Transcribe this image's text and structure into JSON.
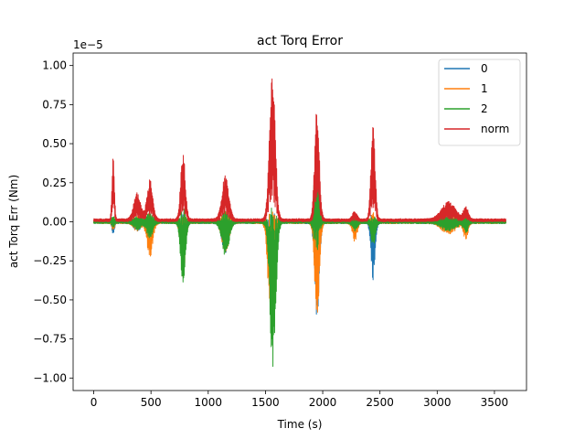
{
  "chart_data": {
    "type": "line",
    "title": "act Torq Error",
    "xlabel": "Time (s)",
    "ylabel": "act Torq Err (Nm)",
    "offset_text": "1e−5",
    "scale": 1e-05,
    "xlim": [
      -180,
      3780
    ],
    "ylim": [
      -1.08,
      1.08
    ],
    "xticks": [
      0,
      500,
      1000,
      1500,
      2000,
      2500,
      3000,
      3500
    ],
    "xtick_labels": [
      "0",
      "500",
      "1000",
      "1500",
      "2000",
      "2500",
      "3000",
      "3500"
    ],
    "yticks": [
      -1.0,
      -0.75,
      -0.5,
      -0.25,
      0.0,
      0.25,
      0.5,
      0.75,
      1.0
    ],
    "ytick_labels": [
      "−1.00",
      "−0.75",
      "−0.50",
      "−0.25",
      "0.00",
      "0.25",
      "0.50",
      "0.75",
      "1.00"
    ],
    "grid": false,
    "legend_position": "top-right",
    "x_range": [
      0,
      3600
    ],
    "series": [
      {
        "name": "0",
        "color": "#1f77b4",
        "events": [
          [
            170,
            -0.08,
            0.02,
            10
          ],
          [
            380,
            -0.05,
            0.02,
            30
          ],
          [
            490,
            -0.08,
            0.03,
            25
          ],
          [
            780,
            -0.35,
            0.05,
            20
          ],
          [
            1150,
            -0.2,
            0.05,
            30
          ],
          [
            1560,
            -0.6,
            0.06,
            25
          ],
          [
            1950,
            -0.6,
            0.06,
            20
          ],
          [
            2280,
            -0.05,
            0.02,
            20
          ],
          [
            2440,
            -0.36,
            0.05,
            18
          ],
          [
            3100,
            -0.03,
            0.02,
            60
          ],
          [
            3250,
            -0.05,
            0.02,
            20
          ]
        ]
      },
      {
        "name": "1",
        "color": "#ff7f0e",
        "events": [
          [
            170,
            -0.05,
            0.02,
            10
          ],
          [
            380,
            -0.05,
            0.03,
            30
          ],
          [
            490,
            -0.22,
            0.05,
            25
          ],
          [
            780,
            -0.35,
            0.06,
            20
          ],
          [
            1150,
            -0.2,
            0.06,
            30
          ],
          [
            1550,
            -0.72,
            0.08,
            25
          ],
          [
            1950,
            -0.67,
            0.08,
            20
          ],
          [
            2280,
            -0.12,
            0.03,
            20
          ],
          [
            2440,
            -0.12,
            0.05,
            18
          ],
          [
            3100,
            -0.07,
            0.03,
            60
          ],
          [
            3250,
            -0.1,
            0.03,
            20
          ]
        ]
      },
      {
        "name": "2",
        "color": "#2ca02c",
        "events": [
          [
            170,
            -0.03,
            0.03,
            10
          ],
          [
            380,
            -0.04,
            0.03,
            30
          ],
          [
            490,
            -0.1,
            0.05,
            25
          ],
          [
            780,
            -0.42,
            0.08,
            20
          ],
          [
            1150,
            -0.22,
            0.06,
            30
          ],
          [
            1565,
            -0.98,
            0.1,
            25
          ],
          [
            1945,
            -0.22,
            0.55,
            20
          ],
          [
            2280,
            -0.05,
            0.03,
            20
          ],
          [
            2440,
            -0.15,
            0.03,
            18
          ],
          [
            3100,
            -0.05,
            0.03,
            60
          ],
          [
            3250,
            -0.06,
            0.03,
            20
          ]
        ]
      },
      {
        "name": "norm",
        "color": "#d62728",
        "events": [
          [
            170,
            0.4,
            10
          ],
          [
            380,
            0.17,
            30
          ],
          [
            490,
            0.25,
            25
          ],
          [
            780,
            0.44,
            20
          ],
          [
            1150,
            0.28,
            30
          ],
          [
            1560,
            0.99,
            25
          ],
          [
            1950,
            0.72,
            20
          ],
          [
            2280,
            0.05,
            20
          ],
          [
            2440,
            0.61,
            18
          ],
          [
            3100,
            0.11,
            60
          ],
          [
            3250,
            0.08,
            20
          ]
        ]
      }
    ]
  }
}
